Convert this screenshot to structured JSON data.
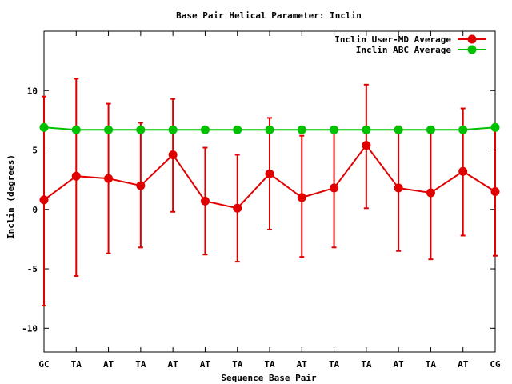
{
  "chart_data": {
    "type": "line",
    "title": "Base Pair Helical Parameter: Inclin",
    "xlabel": "Sequence Base Pair",
    "ylabel": "Inclin (degrees)",
    "categories": [
      "GC",
      "TA",
      "AT",
      "TA",
      "AT",
      "AT",
      "TA",
      "TA",
      "AT",
      "TA",
      "TA",
      "AT",
      "TA",
      "AT",
      "CG"
    ],
    "ylim": [
      -12,
      15
    ],
    "yticks": [
      -10,
      -5,
      0,
      5,
      10
    ],
    "ytick_labels": [
      "-10",
      "-5",
      "0",
      "5",
      "10"
    ],
    "grid": false,
    "legend_position": "top-right",
    "series": [
      {
        "name": "Inclin User-MD Average",
        "color": "#e00000",
        "values": [
          0.8,
          2.8,
          2.6,
          2.0,
          4.6,
          0.7,
          0.1,
          3.0,
          1.0,
          1.8,
          5.4,
          1.8,
          1.4,
          3.2,
          1.5
        ],
        "error_low": [
          -8.1,
          -5.6,
          -3.7,
          -3.2,
          -0.2,
          -3.8,
          -4.4,
          -1.7,
          -4.0,
          -3.2,
          0.1,
          -3.5,
          -4.2,
          -2.2,
          -3.9
        ],
        "error_high": [
          9.5,
          11.0,
          8.9,
          7.3,
          9.3,
          5.2,
          4.6,
          7.7,
          6.2,
          6.9,
          10.5,
          7.0,
          6.9,
          8.5,
          7.0
        ]
      },
      {
        "name": "Inclin ABC Average",
        "color": "#00c000",
        "values": [
          6.9,
          6.7,
          6.7,
          6.7,
          6.7,
          6.7,
          6.7,
          6.7,
          6.7,
          6.7,
          6.7,
          6.7,
          6.7,
          6.7,
          6.9
        ]
      }
    ]
  }
}
